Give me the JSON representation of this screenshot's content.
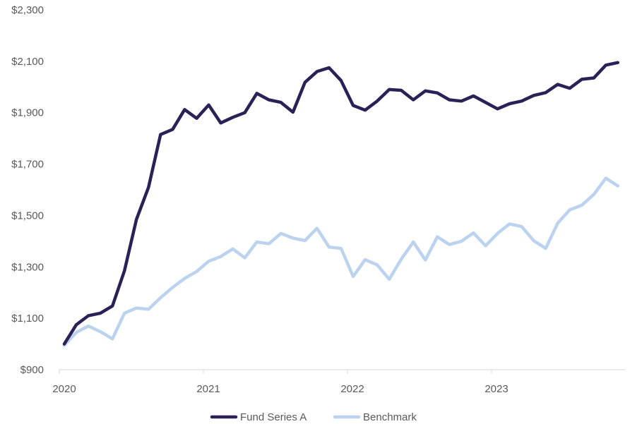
{
  "chart_data": {
    "type": "line",
    "title": "",
    "xlabel": "",
    "ylabel": "",
    "ylim": [
      900,
      2300
    ],
    "yticks": [
      900,
      1100,
      1300,
      1500,
      1700,
      1900,
      2100,
      2300
    ],
    "ytick_labels": [
      "$900",
      "$1,100",
      "$1,300",
      "$1,500",
      "$1,700",
      "$1,900",
      "$2,100",
      "$2,300"
    ],
    "xticks": [
      2020,
      2021,
      2022,
      2023
    ],
    "xtick_labels": [
      "2020",
      "2021",
      "2022",
      "2023"
    ],
    "x_start": 2020,
    "x_step_months": 1,
    "legend_position": "bottom",
    "grid": false,
    "series": [
      {
        "name": "Fund Series A",
        "color": "#2b2157",
        "values": [
          1000,
          1075,
          1110,
          1120,
          1148,
          1285,
          1485,
          1610,
          1815,
          1835,
          1912,
          1878,
          1930,
          1860,
          1882,
          1900,
          1975,
          1950,
          1940,
          1902,
          2018,
          2060,
          2075,
          2025,
          1928,
          1910,
          1945,
          1990,
          1987,
          1950,
          1985,
          1977,
          1950,
          1945,
          1965,
          1940,
          1915,
          1935,
          1945,
          1967,
          1978,
          2010,
          1995,
          2030,
          2035,
          2085,
          2095
        ]
      },
      {
        "name": "Benchmark",
        "color": "#bcd3f0",
        "values": [
          995,
          1045,
          1070,
          1048,
          1020,
          1120,
          1140,
          1135,
          1180,
          1220,
          1255,
          1282,
          1322,
          1340,
          1370,
          1335,
          1397,
          1390,
          1430,
          1412,
          1402,
          1450,
          1377,
          1372,
          1263,
          1328,
          1308,
          1252,
          1330,
          1397,
          1327,
          1417,
          1387,
          1400,
          1432,
          1382,
          1430,
          1467,
          1457,
          1402,
          1372,
          1470,
          1522,
          1540,
          1582,
          1645,
          1615
        ]
      }
    ]
  }
}
